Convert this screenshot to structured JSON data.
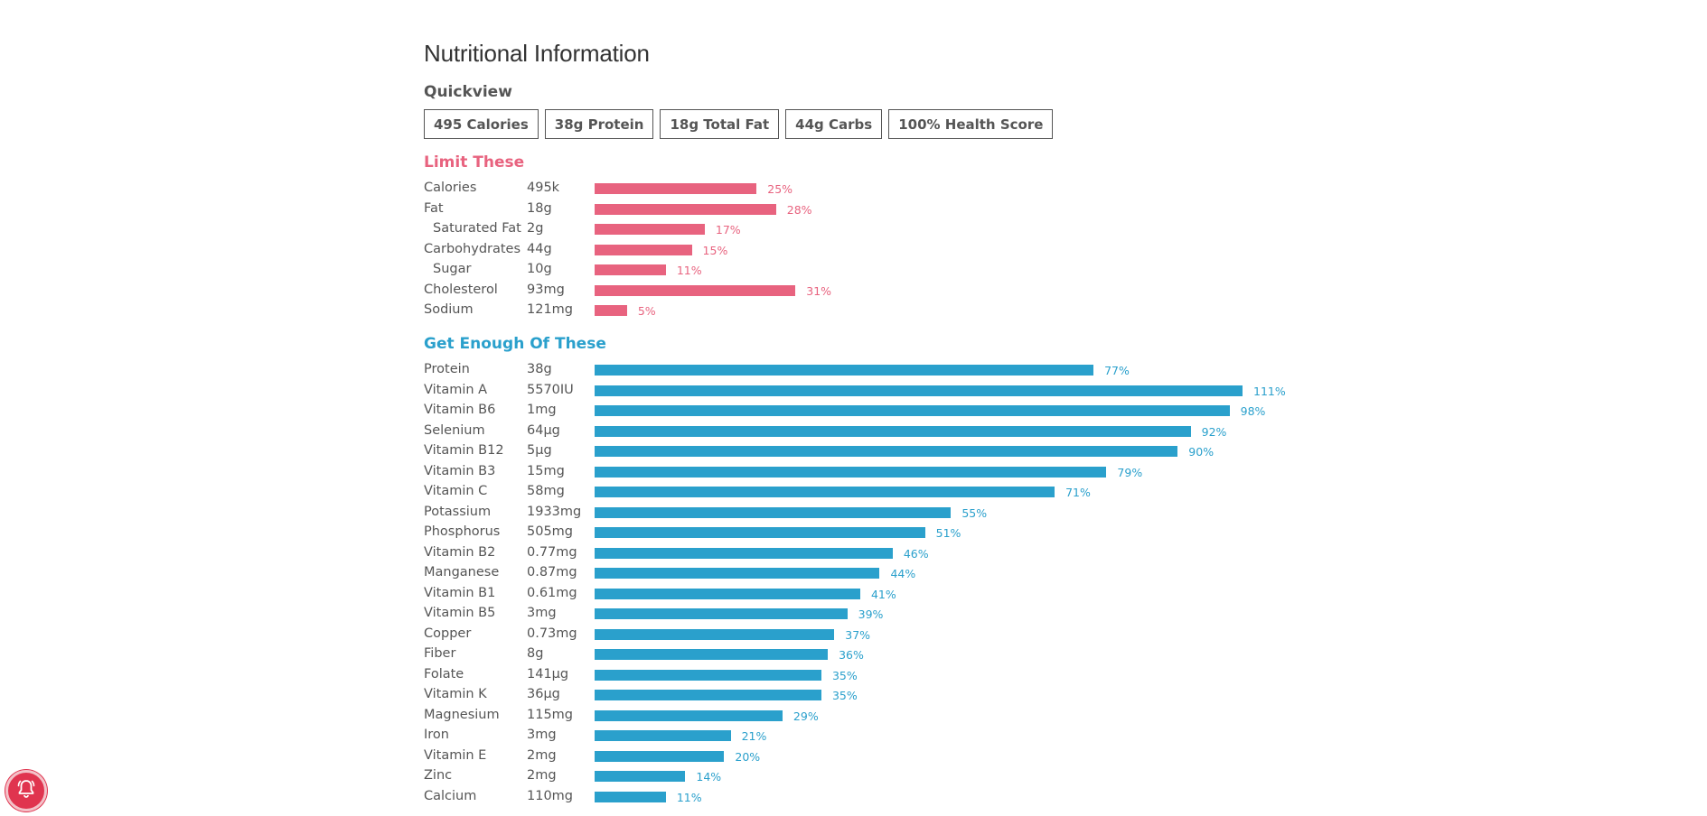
{
  "title": "Nutritional Information",
  "quickview": {
    "label": "Quickview",
    "items": [
      "495 Calories",
      "38g Protein",
      "18g Total Fat",
      "44g Carbs",
      "100% Health Score"
    ]
  },
  "limit": {
    "label": "Limit These",
    "rows": [
      {
        "name": "Calories",
        "amount": "495k",
        "percent": 25,
        "percent_label": "25%",
        "indent": false
      },
      {
        "name": "Fat",
        "amount": "18g",
        "percent": 28,
        "percent_label": "28%",
        "indent": false
      },
      {
        "name": "Saturated Fat",
        "amount": "2g",
        "percent": 17,
        "percent_label": "17%",
        "indent": true
      },
      {
        "name": "Carbohydrates",
        "amount": "44g",
        "percent": 15,
        "percent_label": "15%",
        "indent": false
      },
      {
        "name": "Sugar",
        "amount": "10g",
        "percent": 11,
        "percent_label": "11%",
        "indent": true
      },
      {
        "name": "Cholesterol",
        "amount": "93mg",
        "percent": 31,
        "percent_label": "31%",
        "indent": false
      },
      {
        "name": "Sodium",
        "amount": "121mg",
        "percent": 5,
        "percent_label": "5%",
        "indent": false
      }
    ]
  },
  "enough": {
    "label": "Get Enough Of These",
    "rows": [
      {
        "name": "Protein",
        "amount": "38g",
        "percent": 77,
        "percent_label": "77%"
      },
      {
        "name": "Vitamin A",
        "amount": "5570IU",
        "percent": 111,
        "percent_label": "111%"
      },
      {
        "name": "Vitamin B6",
        "amount": "1mg",
        "percent": 98,
        "percent_label": "98%"
      },
      {
        "name": "Selenium",
        "amount": "64µg",
        "percent": 92,
        "percent_label": "92%"
      },
      {
        "name": "Vitamin B12",
        "amount": "5µg",
        "percent": 90,
        "percent_label": "90%"
      },
      {
        "name": "Vitamin B3",
        "amount": "15mg",
        "percent": 79,
        "percent_label": "79%"
      },
      {
        "name": "Vitamin C",
        "amount": "58mg",
        "percent": 71,
        "percent_label": "71%"
      },
      {
        "name": "Potassium",
        "amount": "1933mg",
        "percent": 55,
        "percent_label": "55%"
      },
      {
        "name": "Phosphorus",
        "amount": "505mg",
        "percent": 51,
        "percent_label": "51%"
      },
      {
        "name": "Vitamin B2",
        "amount": "0.77mg",
        "percent": 46,
        "percent_label": "46%"
      },
      {
        "name": "Manganese",
        "amount": "0.87mg",
        "percent": 44,
        "percent_label": "44%"
      },
      {
        "name": "Vitamin B1",
        "amount": "0.61mg",
        "percent": 41,
        "percent_label": "41%"
      },
      {
        "name": "Vitamin B5",
        "amount": "3mg",
        "percent": 39,
        "percent_label": "39%"
      },
      {
        "name": "Copper",
        "amount": "0.73mg",
        "percent": 37,
        "percent_label": "37%"
      },
      {
        "name": "Fiber",
        "amount": "8g",
        "percent": 36,
        "percent_label": "36%"
      },
      {
        "name": "Folate",
        "amount": "141µg",
        "percent": 35,
        "percent_label": "35%"
      },
      {
        "name": "Vitamin K",
        "amount": "36µg",
        "percent": 35,
        "percent_label": "35%"
      },
      {
        "name": "Magnesium",
        "amount": "115mg",
        "percent": 29,
        "percent_label": "29%"
      },
      {
        "name": "Iron",
        "amount": "3mg",
        "percent": 21,
        "percent_label": "21%"
      },
      {
        "name": "Vitamin E",
        "amount": "2mg",
        "percent": 20,
        "percent_label": "20%"
      },
      {
        "name": "Zinc",
        "amount": "2mg",
        "percent": 14,
        "percent_label": "14%"
      },
      {
        "name": "Calcium",
        "amount": "110mg",
        "percent": 11,
        "percent_label": "11%"
      }
    ]
  },
  "colors": {
    "limit": "#e8637f",
    "enough": "#2aa0cc",
    "notification": "#e0344f"
  },
  "notification": {
    "icon": "bell-icon"
  }
}
